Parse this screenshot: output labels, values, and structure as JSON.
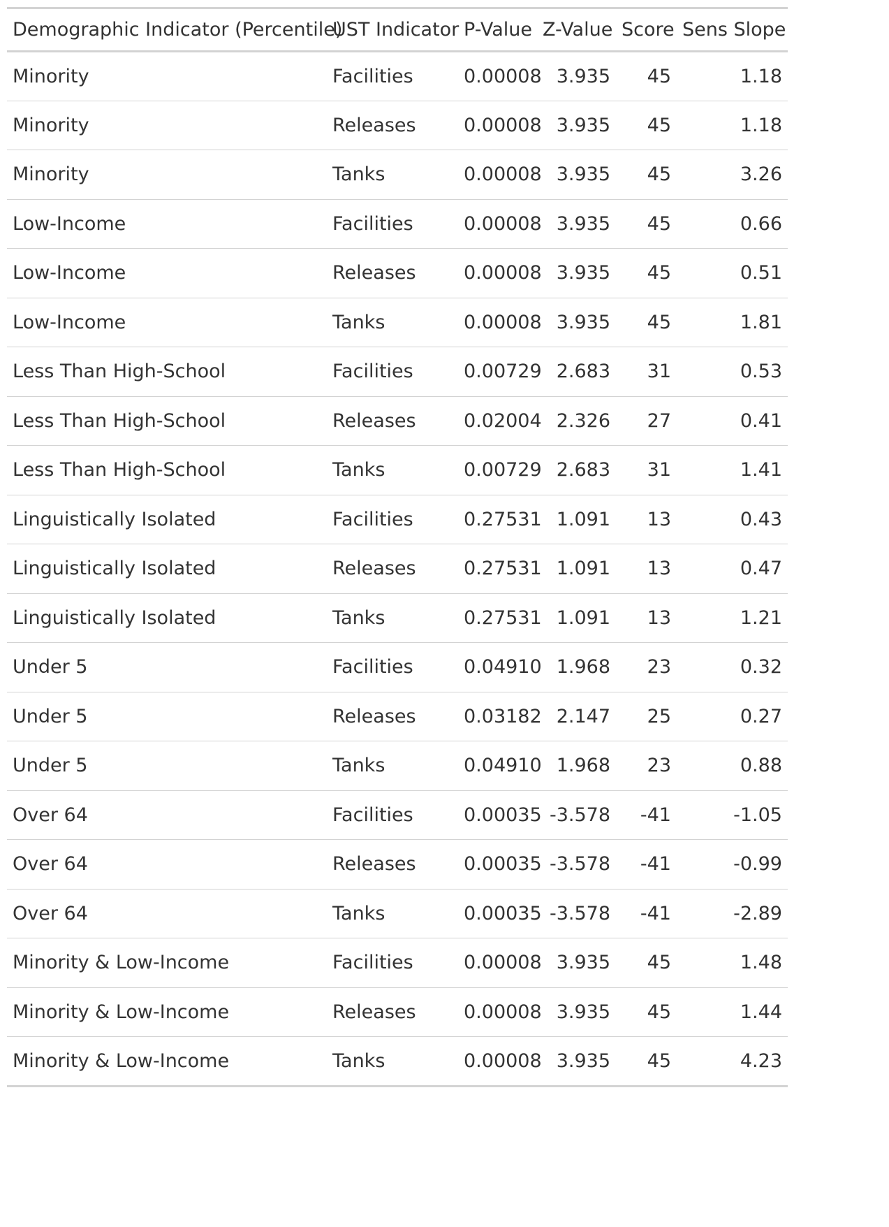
{
  "table": {
    "headers": {
      "demographic": "Demographic Indicator (Percentile)",
      "ust": "UST Indicator",
      "p_value": "P-Value",
      "z_value": "Z-Value",
      "score": "Score",
      "sens_slope": "Sens Slope"
    },
    "rows": [
      {
        "demographic": "Minority",
        "ust": "Facilities",
        "p_value": "0.00008",
        "z_value": "3.935",
        "score": "45",
        "sens_slope": "1.18"
      },
      {
        "demographic": "Minority",
        "ust": "Releases",
        "p_value": "0.00008",
        "z_value": "3.935",
        "score": "45",
        "sens_slope": "1.18"
      },
      {
        "demographic": "Minority",
        "ust": "Tanks",
        "p_value": "0.00008",
        "z_value": "3.935",
        "score": "45",
        "sens_slope": "3.26"
      },
      {
        "demographic": "Low-Income",
        "ust": "Facilities",
        "p_value": "0.00008",
        "z_value": "3.935",
        "score": "45",
        "sens_slope": "0.66"
      },
      {
        "demographic": "Low-Income",
        "ust": "Releases",
        "p_value": "0.00008",
        "z_value": "3.935",
        "score": "45",
        "sens_slope": "0.51"
      },
      {
        "demographic": "Low-Income",
        "ust": "Tanks",
        "p_value": "0.00008",
        "z_value": "3.935",
        "score": "45",
        "sens_slope": "1.81"
      },
      {
        "demographic": "Less Than High-School",
        "ust": "Facilities",
        "p_value": "0.00729",
        "z_value": "2.683",
        "score": "31",
        "sens_slope": "0.53"
      },
      {
        "demographic": "Less Than High-School",
        "ust": "Releases",
        "p_value": "0.02004",
        "z_value": "2.326",
        "score": "27",
        "sens_slope": "0.41"
      },
      {
        "demographic": "Less Than High-School",
        "ust": "Tanks",
        "p_value": "0.00729",
        "z_value": "2.683",
        "score": "31",
        "sens_slope": "1.41"
      },
      {
        "demographic": "Linguistically Isolated",
        "ust": "Facilities",
        "p_value": "0.27531",
        "z_value": "1.091",
        "score": "13",
        "sens_slope": "0.43"
      },
      {
        "demographic": "Linguistically Isolated",
        "ust": "Releases",
        "p_value": "0.27531",
        "z_value": "1.091",
        "score": "13",
        "sens_slope": "0.47"
      },
      {
        "demographic": "Linguistically Isolated",
        "ust": "Tanks",
        "p_value": "0.27531",
        "z_value": "1.091",
        "score": "13",
        "sens_slope": "1.21"
      },
      {
        "demographic": "Under 5",
        "ust": "Facilities",
        "p_value": "0.04910",
        "z_value": "1.968",
        "score": "23",
        "sens_slope": "0.32"
      },
      {
        "demographic": "Under 5",
        "ust": "Releases",
        "p_value": "0.03182",
        "z_value": "2.147",
        "score": "25",
        "sens_slope": "0.27"
      },
      {
        "demographic": "Under 5",
        "ust": "Tanks",
        "p_value": "0.04910",
        "z_value": "1.968",
        "score": "23",
        "sens_slope": "0.88"
      },
      {
        "demographic": "Over 64",
        "ust": "Facilities",
        "p_value": "0.00035",
        "z_value": "-3.578",
        "score": "-41",
        "sens_slope": "-1.05"
      },
      {
        "demographic": "Over 64",
        "ust": "Releases",
        "p_value": "0.00035",
        "z_value": "-3.578",
        "score": "-41",
        "sens_slope": "-0.99"
      },
      {
        "demographic": "Over 64",
        "ust": "Tanks",
        "p_value": "0.00035",
        "z_value": "-3.578",
        "score": "-41",
        "sens_slope": "-2.89"
      },
      {
        "demographic": "Minority & Low-Income",
        "ust": "Facilities",
        "p_value": "0.00008",
        "z_value": "3.935",
        "score": "45",
        "sens_slope": "1.48"
      },
      {
        "demographic": "Minority & Low-Income",
        "ust": "Releases",
        "p_value": "0.00008",
        "z_value": "3.935",
        "score": "45",
        "sens_slope": "1.44"
      },
      {
        "demographic": "Minority & Low-Income",
        "ust": "Tanks",
        "p_value": "0.00008",
        "z_value": "3.935",
        "score": "45",
        "sens_slope": "4.23"
      }
    ]
  }
}
